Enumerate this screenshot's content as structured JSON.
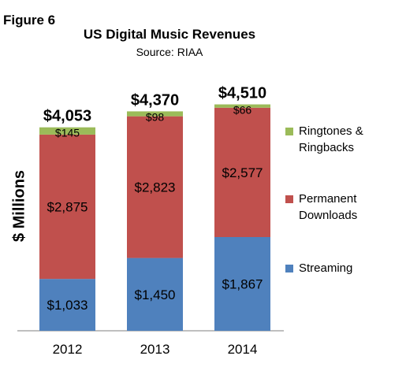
{
  "figure_label": "Figure 6",
  "chart_data": {
    "type": "bar",
    "stacked": true,
    "title": "US Digital Music Revenues",
    "subtitle": "Source: RIAA",
    "ylabel": "$ Millions",
    "xlabel": "",
    "categories": [
      "2012",
      "2013",
      "2014"
    ],
    "series": [
      {
        "name": "Streaming",
        "color": "#4f81bd",
        "values": [
          1033,
          1450,
          1867
        ],
        "labels": [
          "$1,033",
          "$1,450",
          "$1,867"
        ]
      },
      {
        "name": "Permanent Downloads",
        "color": "#c0504d",
        "values": [
          2875,
          2823,
          2577
        ],
        "labels": [
          "$2,875",
          "$2,823",
          "$2,577"
        ]
      },
      {
        "name": "Ringtones & Ringbacks",
        "color": "#9bbb59",
        "values": [
          145,
          98,
          66
        ],
        "labels": [
          "$145",
          "$98",
          "$66"
        ]
      }
    ],
    "totals": [
      "$4,053",
      "$4,370",
      "$4,510"
    ],
    "ylim": [
      0,
      4550
    ],
    "grid": false,
    "legend": "right",
    "legend_order": [
      "Ringtones & Ringbacks",
      "Permanent Downloads",
      "Streaming"
    ]
  }
}
